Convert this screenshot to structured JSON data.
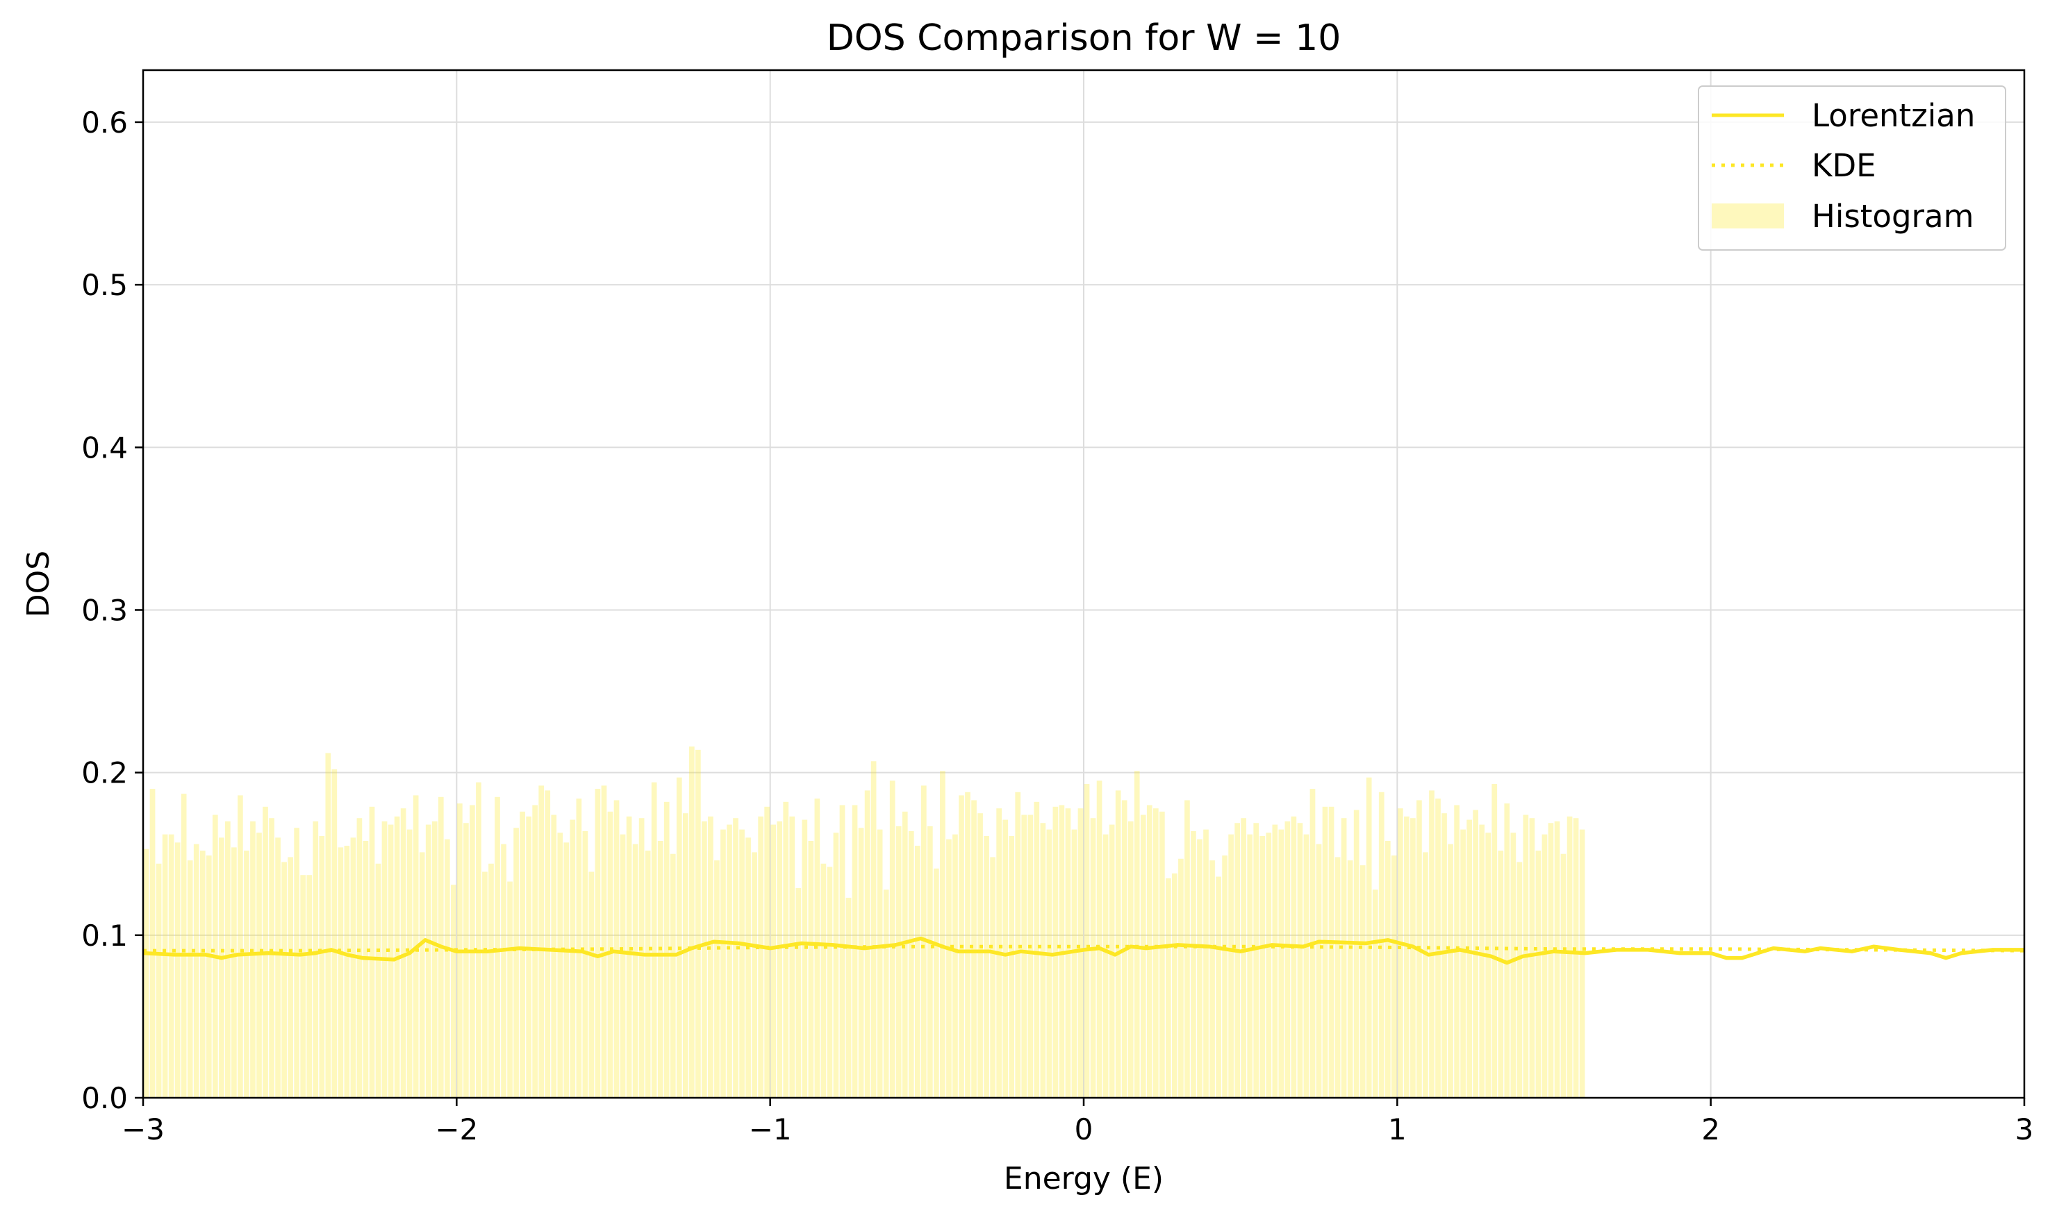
{
  "chart_data": {
    "type": "bar",
    "title": "DOS Comparison for W = 10",
    "xlabel": "Energy (E)",
    "ylabel": "DOS",
    "xlim": [
      -3,
      3
    ],
    "ylim": [
      0,
      0.632
    ],
    "x_ticks": [
      -3,
      -2,
      -1,
      0,
      1,
      2,
      3
    ],
    "x_tick_labels": [
      "−3",
      "−2",
      "−1",
      "0",
      "1",
      "2",
      "3"
    ],
    "y_ticks": [
      0.0,
      0.1,
      0.2,
      0.3,
      0.4,
      0.5,
      0.6
    ],
    "y_tick_labels": [
      "0.0",
      "0.1",
      "0.2",
      "0.3",
      "0.4",
      "0.5",
      "0.6"
    ],
    "grid": true,
    "legend_position": "top-right",
    "colors": {
      "accent": "#fde725",
      "histogram": "#fde725",
      "histogram_opacity": 0.3,
      "grid": "#dddddd"
    },
    "series": [
      {
        "name": "Lorentzian",
        "kind": "line",
        "style": "solid",
        "points": [
          [
            -3.0,
            0.089
          ],
          [
            -2.9,
            0.088
          ],
          [
            -2.8,
            0.088
          ],
          [
            -2.75,
            0.086
          ],
          [
            -2.7,
            0.088
          ],
          [
            -2.6,
            0.089
          ],
          [
            -2.5,
            0.088
          ],
          [
            -2.45,
            0.089
          ],
          [
            -2.4,
            0.091
          ],
          [
            -2.35,
            0.088
          ],
          [
            -2.3,
            0.086
          ],
          [
            -2.2,
            0.085
          ],
          [
            -2.15,
            0.089
          ],
          [
            -2.1,
            0.097
          ],
          [
            -2.05,
            0.093
          ],
          [
            -2.0,
            0.09
          ],
          [
            -1.9,
            0.09
          ],
          [
            -1.8,
            0.092
          ],
          [
            -1.7,
            0.091
          ],
          [
            -1.6,
            0.09
          ],
          [
            -1.55,
            0.087
          ],
          [
            -1.5,
            0.09
          ],
          [
            -1.4,
            0.088
          ],
          [
            -1.3,
            0.088
          ],
          [
            -1.25,
            0.092
          ],
          [
            -1.18,
            0.096
          ],
          [
            -1.1,
            0.095
          ],
          [
            -1.0,
            0.092
          ],
          [
            -0.9,
            0.095
          ],
          [
            -0.8,
            0.094
          ],
          [
            -0.7,
            0.092
          ],
          [
            -0.6,
            0.094
          ],
          [
            -0.52,
            0.098
          ],
          [
            -0.45,
            0.093
          ],
          [
            -0.4,
            0.09
          ],
          [
            -0.3,
            0.09
          ],
          [
            -0.25,
            0.088
          ],
          [
            -0.2,
            0.09
          ],
          [
            -0.1,
            0.088
          ],
          [
            0.0,
            0.091
          ],
          [
            0.05,
            0.092
          ],
          [
            0.1,
            0.088
          ],
          [
            0.15,
            0.093
          ],
          [
            0.2,
            0.092
          ],
          [
            0.3,
            0.094
          ],
          [
            0.4,
            0.093
          ],
          [
            0.5,
            0.09
          ],
          [
            0.6,
            0.094
          ],
          [
            0.7,
            0.093
          ],
          [
            0.75,
            0.096
          ],
          [
            0.9,
            0.095
          ],
          [
            0.97,
            0.097
          ],
          [
            1.05,
            0.093
          ],
          [
            1.1,
            0.088
          ],
          [
            1.2,
            0.091
          ],
          [
            1.3,
            0.087
          ],
          [
            1.35,
            0.083
          ],
          [
            1.4,
            0.087
          ],
          [
            1.5,
            0.09
          ],
          [
            1.6,
            0.089
          ],
          [
            1.7,
            0.091
          ],
          [
            1.8,
            0.091
          ],
          [
            1.9,
            0.089
          ],
          [
            2.0,
            0.089
          ],
          [
            2.05,
            0.086
          ],
          [
            2.1,
            0.086
          ],
          [
            2.2,
            0.092
          ],
          [
            2.3,
            0.09
          ],
          [
            2.35,
            0.092
          ],
          [
            2.45,
            0.09
          ],
          [
            2.52,
            0.093
          ],
          [
            2.6,
            0.091
          ],
          [
            2.7,
            0.089
          ],
          [
            2.75,
            0.086
          ],
          [
            2.8,
            0.089
          ],
          [
            2.9,
            0.091
          ],
          [
            3.0,
            0.091
          ]
        ]
      },
      {
        "name": "KDE",
        "kind": "line",
        "style": "dotted",
        "points": [
          [
            -3.0,
            0.0905
          ],
          [
            -2.5,
            0.0905
          ],
          [
            -2.0,
            0.091
          ],
          [
            -1.5,
            0.0915
          ],
          [
            -1.0,
            0.0925
          ],
          [
            -0.5,
            0.093
          ],
          [
            0.0,
            0.093
          ],
          [
            0.5,
            0.093
          ],
          [
            1.0,
            0.0925
          ],
          [
            1.5,
            0.0915
          ],
          [
            2.0,
            0.0915
          ],
          [
            2.5,
            0.091
          ],
          [
            3.0,
            0.0905
          ]
        ]
      },
      {
        "name": "Histogram",
        "kind": "bar",
        "bin_start": -3.0,
        "bin_width": 0.02,
        "values": [
          0.153,
          0.19,
          0.144,
          0.162,
          0.162,
          0.157,
          0.187,
          0.146,
          0.156,
          0.152,
          0.149,
          0.174,
          0.16,
          0.17,
          0.154,
          0.186,
          0.152,
          0.17,
          0.163,
          0.179,
          0.172,
          0.16,
          0.145,
          0.148,
          0.166,
          0.137,
          0.137,
          0.17,
          0.161,
          0.212,
          0.202,
          0.154,
          0.155,
          0.16,
          0.172,
          0.158,
          0.179,
          0.144,
          0.17,
          0.168,
          0.173,
          0.178,
          0.165,
          0.186,
          0.151,
          0.168,
          0.17,
          0.185,
          0.159,
          0.131,
          0.181,
          0.169,
          0.18,
          0.194,
          0.139,
          0.144,
          0.185,
          0.156,
          0.133,
          0.166,
          0.176,
          0.173,
          0.18,
          0.192,
          0.189,
          0.174,
          0.163,
          0.157,
          0.171,
          0.184,
          0.164,
          0.139,
          0.19,
          0.192,
          0.176,
          0.183,
          0.162,
          0.173,
          0.156,
          0.172,
          0.152,
          0.194,
          0.158,
          0.182,
          0.15,
          0.197,
          0.175,
          0.216,
          0.214,
          0.17,
          0.173,
          0.146,
          0.165,
          0.168,
          0.172,
          0.165,
          0.16,
          0.151,
          0.173,
          0.179,
          0.168,
          0.17,
          0.182,
          0.173,
          0.129,
          0.171,
          0.158,
          0.184,
          0.144,
          0.142,
          0.163,
          0.18,
          0.123,
          0.18,
          0.166,
          0.189,
          0.207,
          0.165,
          0.128,
          0.195,
          0.167,
          0.176,
          0.164,
          0.155,
          0.192,
          0.167,
          0.141,
          0.201,
          0.159,
          0.162,
          0.186,
          0.188,
          0.183,
          0.175,
          0.161,
          0.148,
          0.178,
          0.171,
          0.161,
          0.188,
          0.174,
          0.174,
          0.182,
          0.169,
          0.165,
          0.179,
          0.18,
          0.178,
          0.165,
          0.178,
          0.193,
          0.172,
          0.195,
          0.162,
          0.168,
          0.189,
          0.183,
          0.17,
          0.201,
          0.174,
          0.18,
          0.178,
          0.176,
          0.135,
          0.138,
          0.147,
          0.183,
          0.164,
          0.159,
          0.165,
          0.146,
          0.136,
          0.149,
          0.162,
          0.169,
          0.172,
          0.162,
          0.169,
          0.161,
          0.163,
          0.168,
          0.165,
          0.17,
          0.173,
          0.169,
          0.162,
          0.19,
          0.156,
          0.179,
          0.179,
          0.148,
          0.172,
          0.146,
          0.177,
          0.143,
          0.197,
          0.128,
          0.188,
          0.158,
          0.149,
          0.178,
          0.173,
          0.172,
          0.183,
          0.151,
          0.189,
          0.184,
          0.175,
          0.156,
          0.18,
          0.165,
          0.171,
          0.177,
          0.168,
          0.163,
          0.193,
          0.152,
          0.181,
          0.163,
          0.145,
          0.174,
          0.172,
          0.152,
          0.162,
          0.169,
          0.17,
          0.15,
          0.173,
          0.172,
          0.165
        ]
      }
    ]
  }
}
